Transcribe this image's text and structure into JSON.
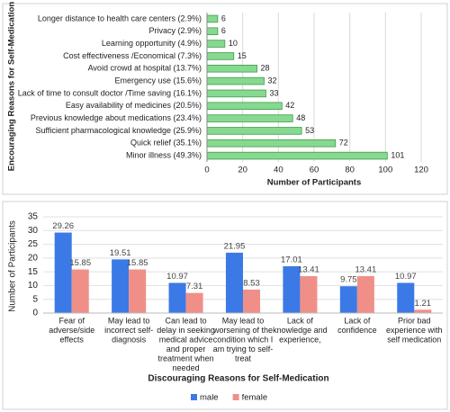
{
  "chart_data": [
    {
      "type": "hbar",
      "y_label": "Encouraging Reasons for Self-Medication",
      "x_label": "Number of Participants",
      "categories": [
        "Longer distance to health care centers (2.9%)",
        "Privacy (2.9%)",
        "Learning opportunity (4.9%)",
        "Cost effectiveness /Economical (7.3%)",
        "Avoid crowd at hospital (13.7%)",
        "Emergency use (15.6%)",
        "Lack of time to consult doctor /Time saving (16.1%)",
        "Easy availability of medicines (20.5%)",
        "Previous knowledge about medications (23.4%)",
        "Sufficient pharmacological knowledge (25.9%)",
        "Quick relief (35.1%)",
        "Minor illness  (49.3%)"
      ],
      "values": [
        6,
        6,
        10,
        15,
        28,
        32,
        33,
        42,
        48,
        53,
        72,
        101
      ],
      "color": "#86d98f",
      "xlim": [
        0,
        120
      ],
      "xticks": [
        0,
        20,
        40,
        60,
        80,
        100,
        120
      ],
      "grid": true
    },
    {
      "type": "grouped_bar",
      "y_label": "Number of Participants",
      "x_label": "Discouraging Reasons for Self-Medication",
      "categories": [
        [
          "Fear of",
          "adverse/side",
          "effects"
        ],
        [
          "May lead to",
          "incorrect self-",
          "diagnosis"
        ],
        [
          "Can lead to",
          "delay in seeking",
          "medical advice",
          "and proper",
          "treatment when",
          "needed"
        ],
        [
          "May lead to",
          "worsening of the",
          "condition which I",
          "am trying to self-",
          "treat"
        ],
        [
          "Lack of",
          "knowledge and",
          "experience,"
        ],
        [
          "Lack of",
          "confidence"
        ],
        [
          "Prior bad",
          "experience with",
          "self medication"
        ]
      ],
      "series": [
        {
          "name": "male",
          "color": "#3b7ae6",
          "values": [
            29.26,
            19.51,
            10.97,
            21.95,
            17.01,
            9.75,
            10.97
          ]
        },
        {
          "name": "female",
          "color": "#f08f88",
          "values": [
            15.85,
            15.85,
            7.31,
            8.53,
            13.41,
            13.41,
            1.21
          ]
        }
      ],
      "ylim": [
        0,
        35
      ],
      "yticks": [
        0,
        5,
        10,
        15,
        20,
        25,
        30,
        35
      ],
      "grid": true
    }
  ]
}
